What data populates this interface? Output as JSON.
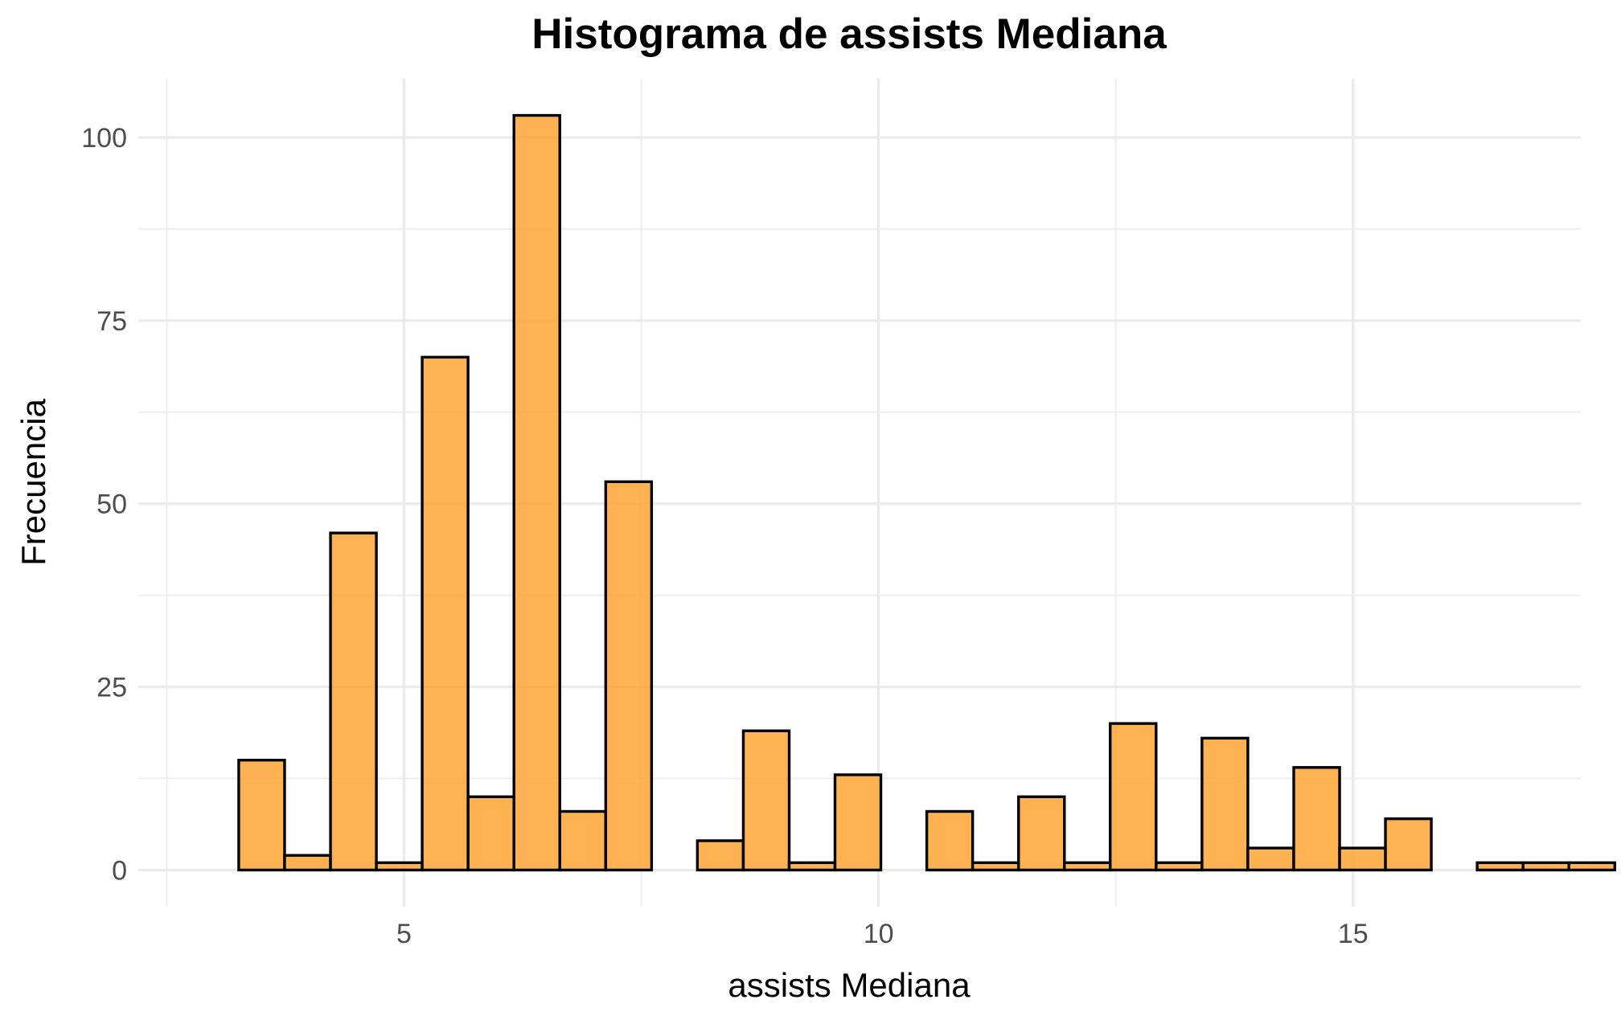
{
  "chart_data": {
    "type": "bar",
    "title": "Histograma de assists Mediana",
    "xlabel": "assists Mediana",
    "ylabel": "Frecuencia",
    "bar_color": "#FFA533",
    "bar_edge_color": "#000000",
    "grid": true,
    "xlim": [
      2.2,
      17.4
    ],
    "ylim": [
      -5,
      108
    ],
    "x_ticks": [
      5,
      10,
      15
    ],
    "x_tick_labels": [
      "5",
      "10",
      "15"
    ],
    "y_ticks": [
      0,
      25,
      50,
      75,
      100
    ],
    "y_tick_labels": [
      "0",
      "25",
      "50",
      "75",
      "100"
    ],
    "bin_width": 0.4833,
    "bin_centers": [
      3.5,
      3.983,
      4.467,
      4.95,
      5.433,
      5.917,
      6.4,
      6.883,
      7.367,
      7.85,
      8.333,
      8.817,
      9.3,
      9.783,
      10.267,
      10.75,
      11.233,
      11.717,
      12.2,
      12.683,
      13.167,
      13.65,
      14.133,
      14.617,
      15.1,
      15.583,
      16.067,
      16.55,
      17.033,
      17.517
    ],
    "counts": [
      15,
      2,
      46,
      1,
      70,
      10,
      103,
      8,
      53,
      0,
      4,
      19,
      1,
      13,
      0,
      8,
      1,
      10,
      1,
      20,
      1,
      18,
      3,
      14,
      3,
      7,
      0,
      1,
      1,
      1
    ]
  }
}
